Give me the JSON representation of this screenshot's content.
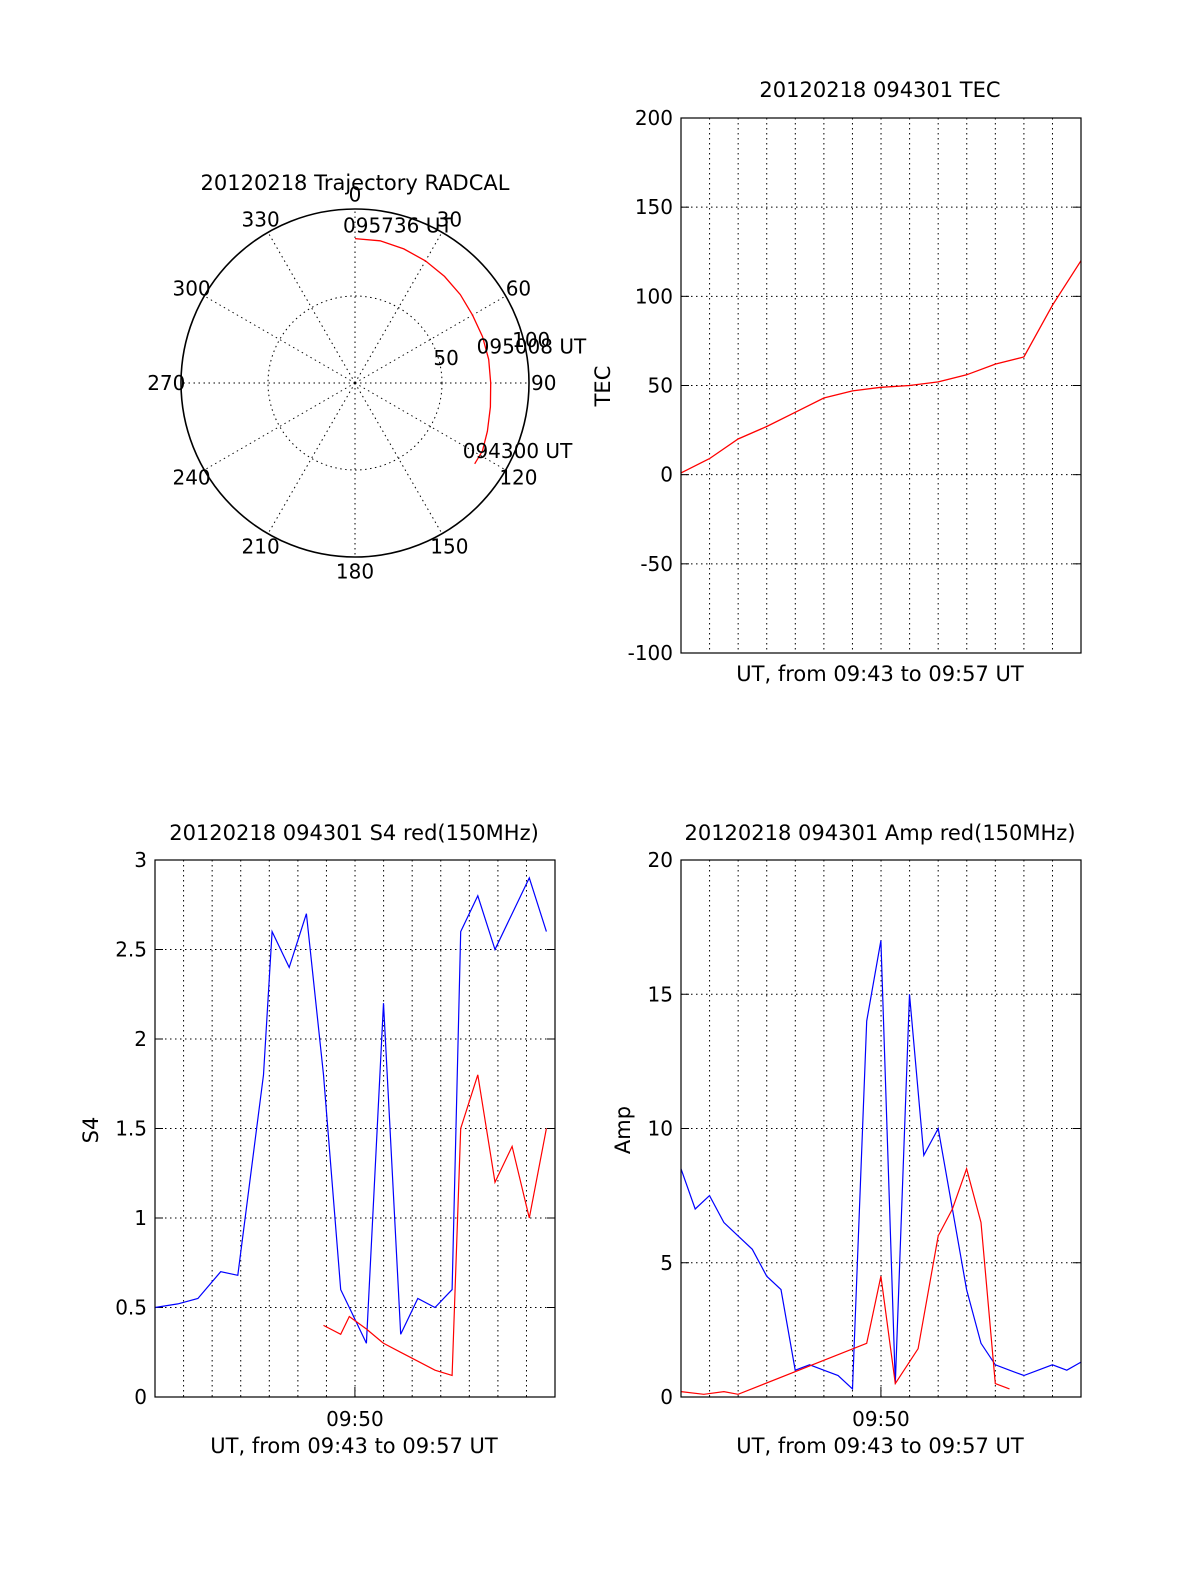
{
  "colors": {
    "red": "#ff0000",
    "blue": "#0000ff",
    "axis": "#000000"
  },
  "chart_data": [
    {
      "id": "trajectory",
      "type": "polar-trajectory",
      "title": "20120218 Trajectory RADCAL",
      "angle_labels": [
        "0",
        "30",
        "60",
        "90",
        "120",
        "150",
        "180",
        "210",
        "240",
        "270",
        "300",
        "330"
      ],
      "radius_labels": [
        "50",
        "100"
      ],
      "rlim": [
        0,
        100
      ],
      "grid": true,
      "series": [
        {
          "color": "red",
          "points": [
            {
              "az": 0,
              "r": 83
            },
            {
              "az": 10,
              "r": 83
            },
            {
              "az": 20,
              "r": 82
            },
            {
              "az": 30,
              "r": 81
            },
            {
              "az": 40,
              "r": 80
            },
            {
              "az": 50,
              "r": 79
            },
            {
              "az": 60,
              "r": 78
            },
            {
              "az": 70,
              "r": 78
            },
            {
              "az": 80,
              "r": 78
            },
            {
              "az": 90,
              "r": 78
            },
            {
              "az": 100,
              "r": 79
            },
            {
              "az": 110,
              "r": 81
            },
            {
              "az": 118,
              "r": 83
            },
            {
              "az": 124,
              "r": 83
            }
          ]
        }
      ],
      "annotations": [
        {
          "text": "095736 UT",
          "az": 0,
          "r": 83
        },
        {
          "text": "095008 UT",
          "az": 80,
          "r": 78
        },
        {
          "text": "094300 UT",
          "az": 124,
          "r": 83
        }
      ]
    },
    {
      "id": "tec",
      "type": "line",
      "title": "20120218 094301 TEC",
      "xlabel": "UT, from 09:43 to 09:57 UT",
      "ylabel": "TEC",
      "xlim": [
        9.7167,
        9.95
      ],
      "ylim": [
        -100,
        200
      ],
      "yticks": [
        "-100",
        "-50",
        "0",
        "50",
        "100",
        "150",
        "200"
      ],
      "grid": true,
      "series": [
        {
          "color": "red",
          "x": [
            9.7167,
            9.7333,
            9.75,
            9.7667,
            9.7833,
            9.8,
            9.8167,
            9.8333,
            9.85,
            9.8667,
            9.8833,
            9.9,
            9.9167,
            9.9333,
            9.95
          ],
          "y": [
            1,
            9,
            20,
            27,
            35,
            43,
            47,
            49,
            50,
            52,
            56,
            62,
            66,
            95,
            120
          ]
        }
      ]
    },
    {
      "id": "s4",
      "type": "line",
      "title": "20120218 094301 S4 red(150MHz)",
      "xlabel": "UT, from 09:43 to 09:57 UT",
      "ylabel": "S4",
      "xlim": [
        9.7167,
        9.95
      ],
      "ylim": [
        0,
        3
      ],
      "yticks": [
        "0",
        "0.5",
        "1",
        "1.5",
        "2",
        "2.5",
        "3"
      ],
      "xticks": [
        {
          "value": 9.8333,
          "label": "09:50"
        }
      ],
      "grid": true,
      "series": [
        {
          "color": "blue",
          "x": [
            9.7167,
            9.73,
            9.7417,
            9.755,
            9.765,
            9.78,
            9.785,
            9.795,
            9.805,
            9.815,
            9.825,
            9.83,
            9.84,
            9.85,
            9.86,
            9.87,
            9.88,
            9.89,
            9.895,
            9.905,
            9.915,
            9.925,
            9.935,
            9.945
          ],
          "y": [
            0.5,
            0.52,
            0.55,
            0.7,
            0.68,
            1.8,
            2.6,
            2.4,
            2.7,
            1.8,
            0.6,
            0.5,
            0.3,
            2.2,
            0.35,
            0.55,
            0.5,
            0.6,
            2.6,
            2.8,
            2.5,
            2.7,
            2.9,
            2.6
          ]
        },
        {
          "color": "red",
          "x": [
            9.815,
            9.825,
            9.83,
            9.84,
            9.85,
            9.86,
            9.87,
            9.88,
            9.89,
            9.895,
            9.905,
            9.915,
            9.925,
            9.935,
            9.945
          ],
          "y": [
            0.4,
            0.35,
            0.45,
            0.38,
            0.3,
            0.25,
            0.2,
            0.15,
            0.12,
            1.5,
            1.8,
            1.2,
            1.4,
            1.0,
            1.5
          ]
        }
      ]
    },
    {
      "id": "amp",
      "type": "line",
      "title": "20120218 094301 Amp red(150MHz)",
      "xlabel": "UT, from 09:43 to 09:57 UT",
      "ylabel": "Amp",
      "xlim": [
        9.7167,
        9.95
      ],
      "ylim": [
        0,
        20
      ],
      "yticks": [
        "0",
        "5",
        "10",
        "15",
        "20"
      ],
      "xticks": [
        {
          "value": 9.8333,
          "label": "09:50"
        }
      ],
      "grid": true,
      "series": [
        {
          "color": "blue",
          "x": [
            9.7167,
            9.725,
            9.7333,
            9.7417,
            9.75,
            9.7583,
            9.7667,
            9.775,
            9.7833,
            9.7917,
            9.8,
            9.8083,
            9.8167,
            9.825,
            9.8333,
            9.8417,
            9.85,
            9.8583,
            9.8667,
            9.875,
            9.8833,
            9.8917,
            9.9,
            9.9083,
            9.9167,
            9.925,
            9.9333,
            9.9417,
            9.95
          ],
          "y": [
            8.5,
            7.0,
            7.5,
            6.5,
            6.0,
            5.5,
            4.5,
            4.0,
            1.0,
            1.2,
            1.0,
            0.8,
            0.3,
            14.0,
            17.0,
            0.5,
            15.0,
            9.0,
            10.0,
            7.0,
            4.0,
            2.0,
            1.2,
            1.0,
            0.8,
            1.0,
            1.2,
            1.0,
            1.3
          ]
        },
        {
          "color": "red",
          "x": [
            9.7167,
            9.73,
            9.7417,
            9.75,
            9.825,
            9.8333,
            9.8417,
            9.855,
            9.8667,
            9.875,
            9.8833,
            9.8917,
            9.9,
            9.9083
          ],
          "y": [
            0.2,
            0.1,
            0.2,
            0.1,
            2.0,
            4.5,
            0.5,
            1.8,
            6.0,
            7.0,
            8.5,
            6.5,
            0.5,
            0.3
          ]
        }
      ]
    }
  ]
}
